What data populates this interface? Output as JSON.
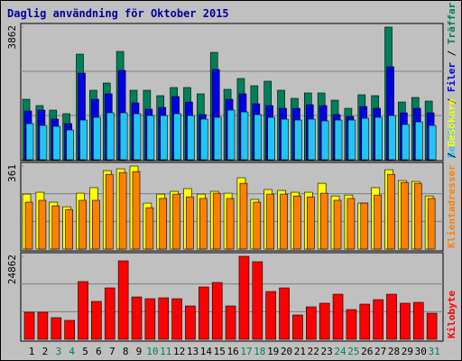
{
  "chart_data": [
    {
      "type": "bar",
      "title": "Daglig användning för Oktober 2015",
      "separator": "/",
      "ylim": [
        0,
        3862
      ],
      "yticks": [
        3862
      ],
      "series": [
        {
          "name": "Träffar",
          "color": "#00805a",
          "values": [
            1760,
            1576,
            1445,
            1340,
            3074,
            2023,
            2233,
            3153,
            2023,
            2023,
            1865,
            2102,
            2102,
            1918,
            3126,
            2049,
            2365,
            2154,
            2286,
            2023,
            1786,
            1944,
            1944,
            1734,
            1497,
            1891,
            1865,
            3862,
            1681,
            1813,
            1708
          ]
        },
        {
          "name": "Filer",
          "color": "#0000e6",
          "values": [
            1419,
            1445,
            1182,
            1051,
            2522,
            1760,
            1918,
            2601,
            1655,
            1471,
            1524,
            1839,
            1681,
            1314,
            2627,
            1760,
            1918,
            1629,
            1576,
            1497,
            1497,
            1603,
            1576,
            1314,
            1261,
            1550,
            1497,
            2706,
            1366,
            1497,
            1366
          ]
        },
        {
          "name": "Besökare",
          "color": "#22c4f4",
          "values": [
            1051,
            998,
            972,
            867,
            1156,
            1235,
            1366,
            1366,
            1340,
            1287,
            1287,
            1340,
            1287,
            1182,
            1235,
            1445,
            1392,
            1314,
            1235,
            1182,
            1156,
            1182,
            1130,
            1156,
            1156,
            1208,
            1235,
            1287,
            1025,
            1103,
            998
          ]
        }
      ]
    },
    {
      "type": "bar",
      "separator": "/",
      "ylim": [
        0,
        361
      ],
      "yticks": [
        361
      ],
      "series": [
        {
          "name": "Besökare",
          "color": "#ffff00",
          "values": [
            239,
            247,
            204,
            184,
            243,
            267,
            341,
            349,
            361,
            200,
            239,
            251,
            263,
            239,
            251,
            243,
            310,
            216,
            259,
            255,
            247,
            247,
            286,
            231,
            235,
            200,
            267,
            345,
            298,
            294,
            231
          ]
        },
        {
          "name": "Klientadresser",
          "color": "#ff8000",
          "values": [
            204,
            212,
            188,
            172,
            212,
            212,
            325,
            333,
            337,
            180,
            220,
            239,
            227,
            220,
            243,
            220,
            286,
            204,
            239,
            239,
            231,
            227,
            243,
            212,
            220,
            200,
            235,
            325,
            290,
            286,
            220
          ]
        }
      ]
    },
    {
      "type": "bar",
      "ylim": [
        0,
        24862
      ],
      "yticks": [
        24862
      ],
      "categories": [
        "1",
        "2",
        "3",
        "4",
        "5",
        "6",
        "7",
        "8",
        "9",
        "10",
        "11",
        "12",
        "13",
        "14",
        "15",
        "16",
        "17",
        "18",
        "19",
        "20",
        "21",
        "22",
        "23",
        "24",
        "25",
        "26",
        "27",
        "28",
        "29",
        "30",
        "31"
      ],
      "weekend_indices": [
        2,
        3,
        9,
        10,
        16,
        17,
        23,
        24,
        30
      ],
      "weekend_color": "#00805a",
      "label_color": "#000000",
      "series": [
        {
          "name": "Kilobyte",
          "color": "#ff0000",
          "values": [
            8106,
            8106,
            6485,
            5674,
            17293,
            11348,
            15401,
            23507,
            12699,
            12159,
            12429,
            12159,
            9997,
            15672,
            17023,
            9997,
            24862,
            23237,
            14321,
            15401,
            7295,
            9727,
            10808,
            13510,
            8917,
            10538,
            11889,
            13510,
            10808,
            11078,
            7836
          ]
        }
      ]
    }
  ]
}
